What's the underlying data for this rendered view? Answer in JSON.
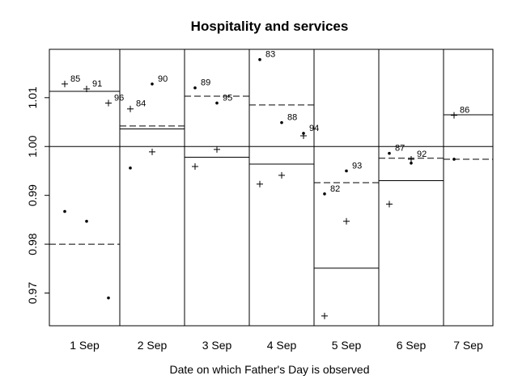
{
  "chart_data": {
    "type": "scatter",
    "title": "Hospitality and services",
    "xlabel": "Date on which Father's Day is observed",
    "ylabel": "",
    "ylim": [
      0.9633,
      1.0199
    ],
    "yticks": [
      "0.97",
      "0.98",
      "0.99",
      "1.00",
      "1.01"
    ],
    "ytick_values": [
      0.97,
      0.98,
      0.99,
      1.0,
      1.01
    ],
    "reference_line": 1.0,
    "grid": false,
    "markers": {
      "plus": "+",
      "dot": "•"
    },
    "line_styles": {
      "plus_mean": "solid",
      "dot_mean": "dashed"
    },
    "panels": [
      {
        "date": "1 Sep",
        "plus_mean": 1.0113,
        "dot_mean": 0.98,
        "points": [
          {
            "year": "85",
            "plus": 1.0128,
            "dot": 0.9867
          },
          {
            "year": "91",
            "plus": 1.0118,
            "dot": 0.9847
          },
          {
            "year": "96",
            "plus": 1.0089,
            "dot": 0.969
          }
        ]
      },
      {
        "date": "2 Sep",
        "plus_mean": 1.0036,
        "dot_mean": 1.0042,
        "points": [
          {
            "year": "84",
            "plus": 1.0077,
            "dot": 0.9956
          },
          {
            "year": "90",
            "plus": 0.9989,
            "dot": 1.0128
          }
        ]
      },
      {
        "date": "3 Sep",
        "plus_mean": 0.9978,
        "dot_mean": 1.0103,
        "points": [
          {
            "year": "89",
            "plus": 0.9959,
            "dot": 1.012
          },
          {
            "year": "95",
            "plus": 0.9994,
            "dot": 1.0089
          }
        ]
      },
      {
        "date": "4 Sep",
        "plus_mean": 0.9964,
        "dot_mean": 1.0085,
        "points": [
          {
            "year": "83",
            "plus": 0.9923,
            "dot": 1.0178
          },
          {
            "year": "88",
            "plus": 0.9941,
            "dot": 1.0049
          },
          {
            "year": "94",
            "plus": 1.0022,
            "dot": 1.0027
          }
        ]
      },
      {
        "date": "5 Sep",
        "plus_mean": 0.9751,
        "dot_mean": 0.9926,
        "points": [
          {
            "year": "82",
            "plus": 0.9653,
            "dot": 0.9903
          },
          {
            "year": "93",
            "plus": 0.9847,
            "dot": 0.995
          }
        ]
      },
      {
        "date": "6 Sep",
        "plus_mean": 0.993,
        "dot_mean": 0.9976,
        "points": [
          {
            "year": "87",
            "plus": 0.9882,
            "dot": 0.9986
          },
          {
            "year": "92",
            "plus": 0.9974,
            "dot": 0.9966
          }
        ]
      },
      {
        "date": "7 Sep",
        "plus_mean": 1.0065,
        "dot_mean": 0.9974,
        "points": [
          {
            "year": "86",
            "plus": 1.0064,
            "dot": 0.9974
          }
        ]
      }
    ]
  }
}
